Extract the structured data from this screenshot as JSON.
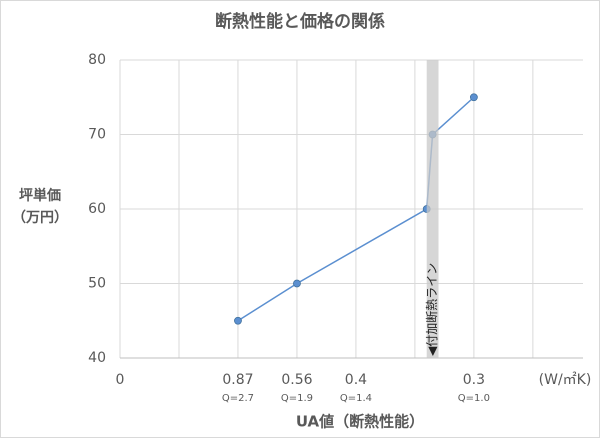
{
  "chart_data": {
    "type": "line",
    "title": "断熱性能と価格の関係",
    "x_label": "UA値（断熱性能）",
    "x_unit": "(W/㎡K)",
    "y_label": [
      "坪単価",
      "（万円）"
    ],
    "xlim": [
      0,
      7.85
    ],
    "ylim": [
      40,
      80
    ],
    "xticks": [
      0,
      {
        "value": 2,
        "label": "0.87"
      },
      {
        "value": 3,
        "label": "0.56"
      },
      {
        "value": 4,
        "label": "0.4"
      },
      {
        "value": 6,
        "label": "0.3"
      }
    ],
    "xtick_sublabels": [
      null,
      "Q=2.7",
      "Q=1.9",
      "Q=1.4",
      "Q=1.0"
    ],
    "xgrid": [
      1,
      2,
      3,
      4,
      5,
      6,
      7
    ],
    "yticks": [
      40,
      50,
      60,
      70,
      80
    ],
    "grid": true,
    "band": {
      "x": [
        5.2,
        5.4
      ],
      "label": "◀付加断熱ライン",
      "color": "#c8c8c8"
    },
    "series": [
      {
        "color": "#5b8fd0",
        "x": [
          2,
          3,
          5.2,
          5.3,
          6
        ],
        "values": [
          45,
          50,
          60,
          70,
          75
        ]
      }
    ]
  }
}
